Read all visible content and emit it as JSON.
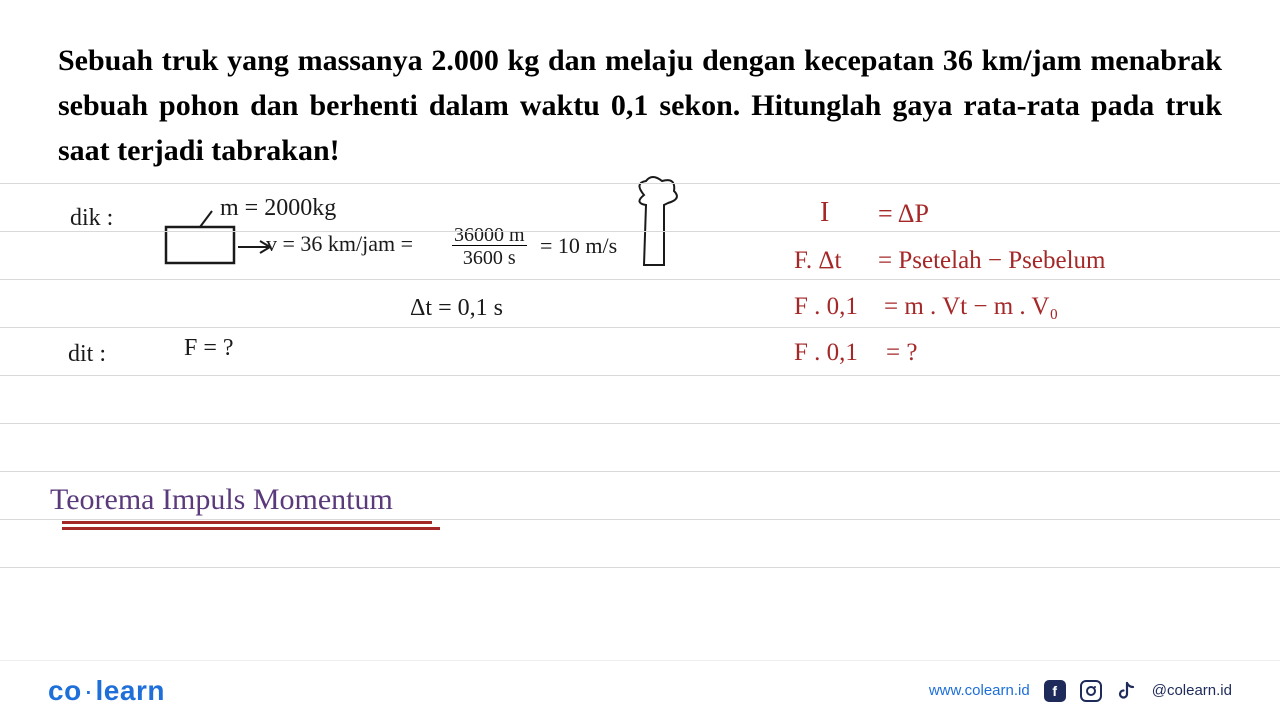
{
  "problem": "Sebuah truk yang massanya 2.000 kg dan melaju dengan kecepatan 36 km/jam menabrak sebuah pohon dan berhenti dalam waktu 0,1 sekon. Hitunglah gaya rata-rata pada truk saat terjadi tabrakan!",
  "ruled_lines_y": [
    0,
    48,
    96,
    144,
    192,
    240,
    288,
    336,
    384
  ],
  "handwriting": {
    "dik_label": "dik :",
    "mass": "m = 2000kg",
    "velocity": "v = 36 km/jam =",
    "frac_num": "36000 m",
    "frac_den": "3600 s",
    "velocity_result": "= 10 m/s",
    "delta_t": "Δt = 0,1 s",
    "dit_label": "dit :",
    "dit_f": "F = ?",
    "theorem": "Teorema Impuls Momentum",
    "eq1_left": "I",
    "eq1_right": "= ΔP",
    "eq2_left": "F. Δt",
    "eq2_right": "=  Psetelah − Psebelum",
    "eq3_left": "F . 0,1",
    "eq3_right": "=  m . Vt  −  m . V₀",
    "eq4_left": "F . 0,1",
    "eq4_right": "=  ?"
  },
  "colors": {
    "hw_black": "#1a1a1a",
    "hw_red": "#a52828",
    "hw_purple": "#5a3a7a",
    "brand_blue": "#1e6fd9",
    "dark_blue": "#1e2b5a",
    "rule": "#d9d9d9"
  },
  "footer": {
    "logo_co": "co",
    "logo_learn": "learn",
    "url": "www.colearn.id",
    "handle": "@colearn.id"
  }
}
